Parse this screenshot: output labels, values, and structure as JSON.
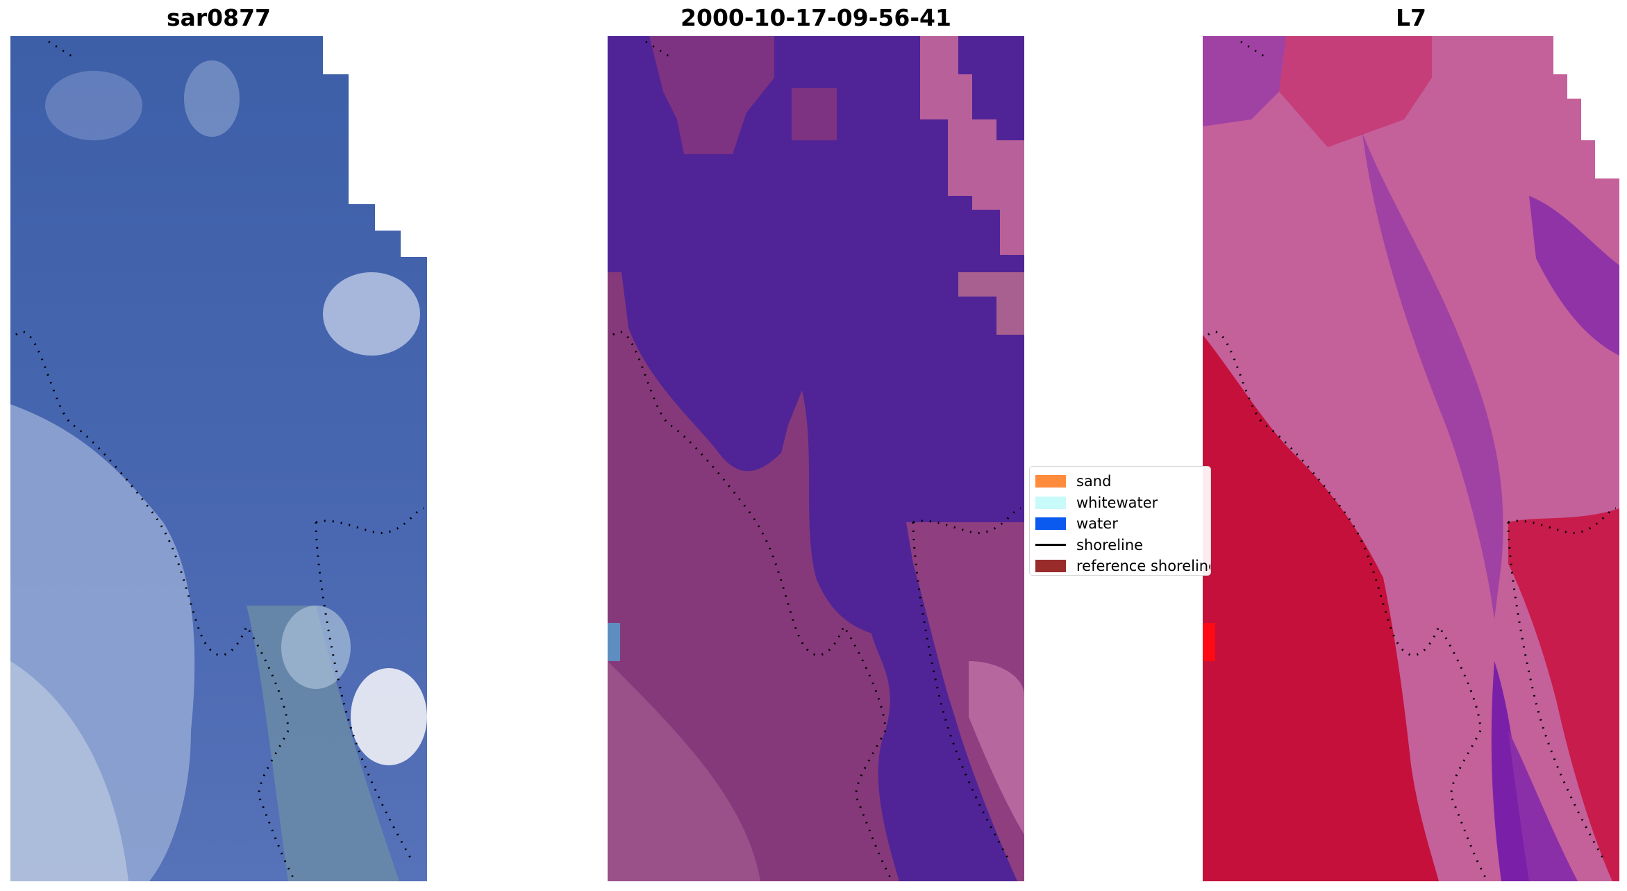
{
  "panels": [
    {
      "title": "sar0877",
      "shows": "rgb-composite"
    },
    {
      "title": "2000-10-17-09-56-41",
      "shows": "classified-overlay"
    },
    {
      "title": "L7",
      "shows": "index-map"
    }
  ],
  "legend": {
    "items": [
      {
        "label": "sand",
        "color": "#ff8c3c",
        "kind": "patch"
      },
      {
        "label": "whitewater",
        "color": "#c8fafa",
        "kind": "patch"
      },
      {
        "label": "water",
        "color": "#0a5af0",
        "kind": "patch"
      },
      {
        "label": "shoreline",
        "color": "#000000",
        "kind": "line"
      },
      {
        "label": "reference shoreline",
        "color": "#992b2b",
        "kind": "patch"
      }
    ]
  },
  "colors": {
    "rgb_water": "#4565ad",
    "rgb_land": "#8fa3d0",
    "class_water": "#502496",
    "class_land": "#8a3c7c",
    "index_land": "#c4103a",
    "index_water": "#c0609a",
    "index_channel": "#7a20a8",
    "shoreline_dots": "#000000"
  }
}
